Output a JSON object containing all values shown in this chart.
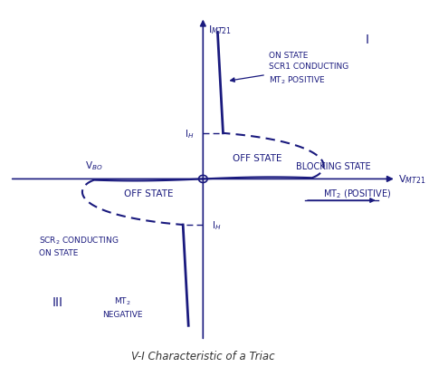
{
  "title": "V-I Characteristic of a Triac",
  "color": "#1a1a7e",
  "bg_color": "#ffffff",
  "quadrant_I_label": "I",
  "quadrant_III_label": "III",
  "x_axis_label": "V$_{MT21}$",
  "y_axis_label": "I$_{MT21}$",
  "label_VBO": "V$_{BO}$",
  "label_IH_pos": "I$_H$",
  "label_IH_neg": "I$_H$",
  "label_off_state_pos": "OFF STATE",
  "label_off_state_neg": "OFF STATE",
  "label_blocking_state": "BLOCKING STATE",
  "label_mt2_positive": "MT$_2$ (POSITIVE)",
  "label_on_state": "ON STATE\nSCR1 CONDUCTING\nMT$_2$ POSITIVE",
  "label_scr2": "SCR$_2$ CONDUCTING\nON STATE",
  "label_mt2_neg": "MT$_2$\nNEGATIVE"
}
